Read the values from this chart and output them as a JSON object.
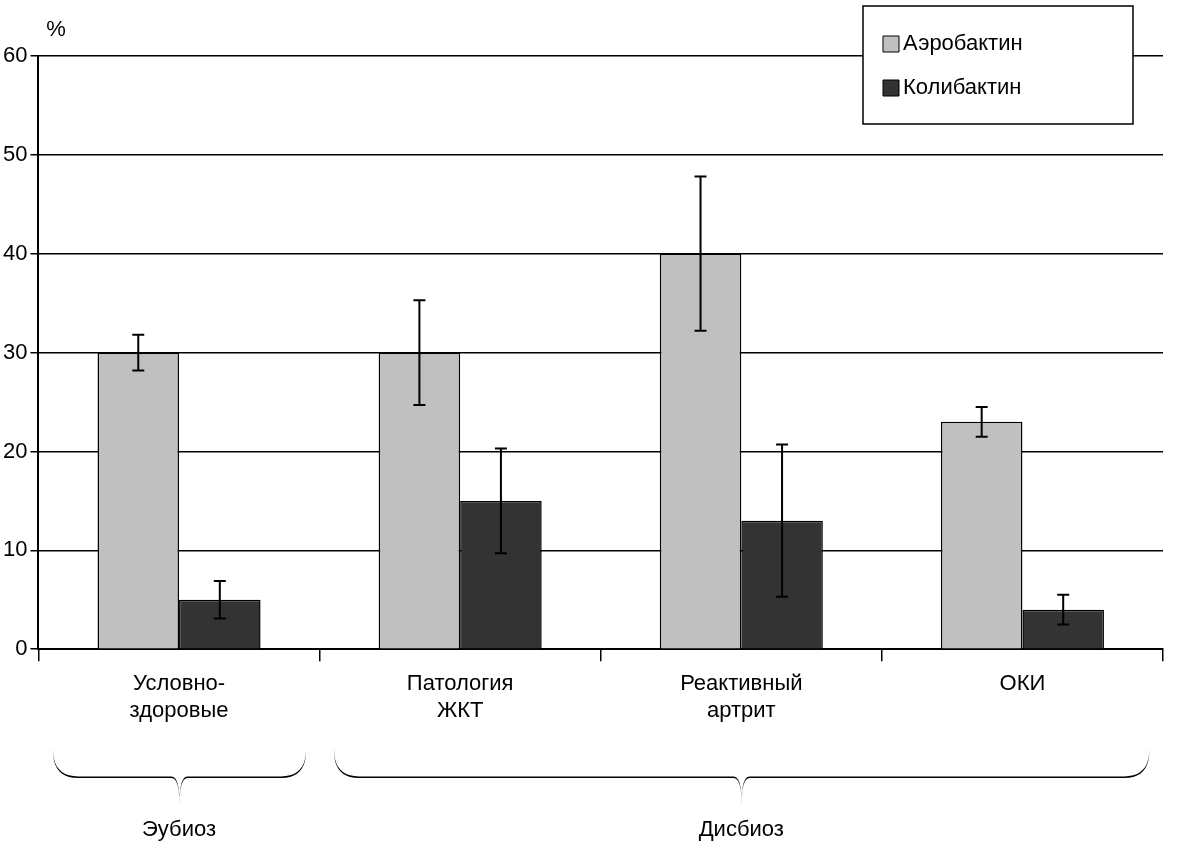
{
  "chart_data": {
    "type": "bar",
    "ylabel": "%",
    "categories": [
      "Условно-здоровые",
      "Патология ЖКТ",
      "Реактивный артрит",
      "ОКИ"
    ],
    "series": [
      {
        "name": "Аэробактин",
        "color": "#c0c0c0",
        "values": [
          30,
          30,
          40,
          23
        ],
        "errors": [
          1.8,
          5.3,
          7.8,
          1.5
        ]
      },
      {
        "name": "Колибактин",
        "color": "#333333",
        "values": [
          5,
          15,
          13,
          4
        ],
        "errors": [
          1.9,
          5.3,
          7.7,
          1.5
        ]
      }
    ],
    "ylim": [
      0,
      60
    ],
    "yticks": [
      0,
      10,
      20,
      30,
      40,
      50,
      60
    ],
    "grid": "y",
    "legend": "top right",
    "annotations": [
      "Эубиоз",
      "Дисбиоз"
    ]
  }
}
